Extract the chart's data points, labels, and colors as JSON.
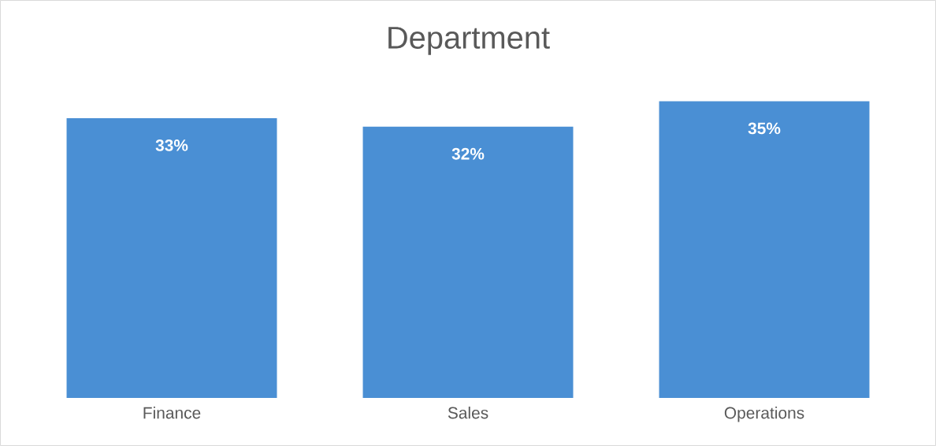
{
  "chart_data": {
    "type": "bar",
    "title": "Department",
    "categories": [
      "Finance",
      "Sales",
      "Operations"
    ],
    "values": [
      33,
      32,
      35
    ],
    "value_labels": [
      "33%",
      "32%",
      "35%"
    ],
    "color": "#4a8fd4",
    "tick_labels": "x"
  }
}
